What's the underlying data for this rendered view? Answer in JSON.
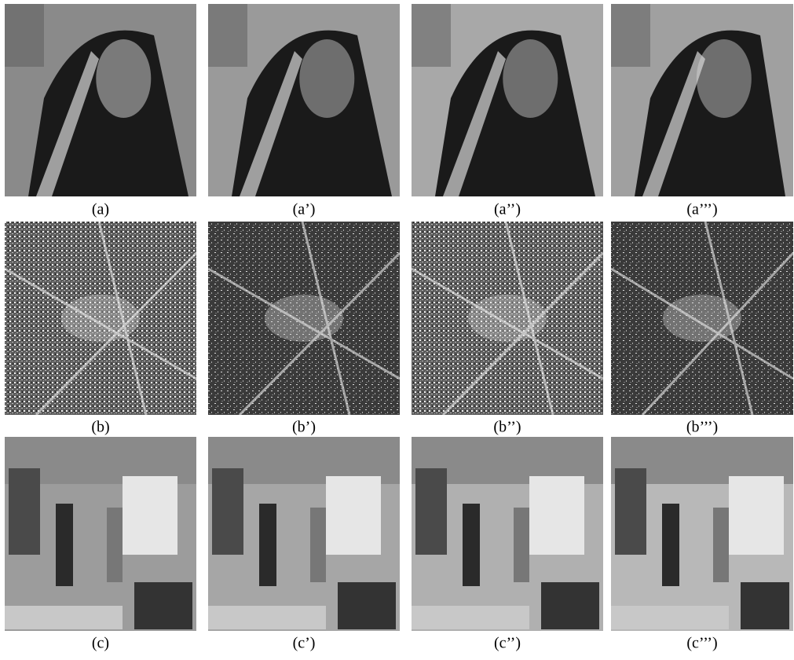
{
  "figure": {
    "rows": [
      [
        "(a)",
        "(a’)",
        "(a’’)",
        "(a’’’)"
      ],
      [
        "(b)",
        "(b’)",
        "(b’’)",
        "(b’’’)"
      ],
      [
        "(c)",
        "(c’)",
        "(c’’)",
        "(c’’’)"
      ]
    ]
  }
}
